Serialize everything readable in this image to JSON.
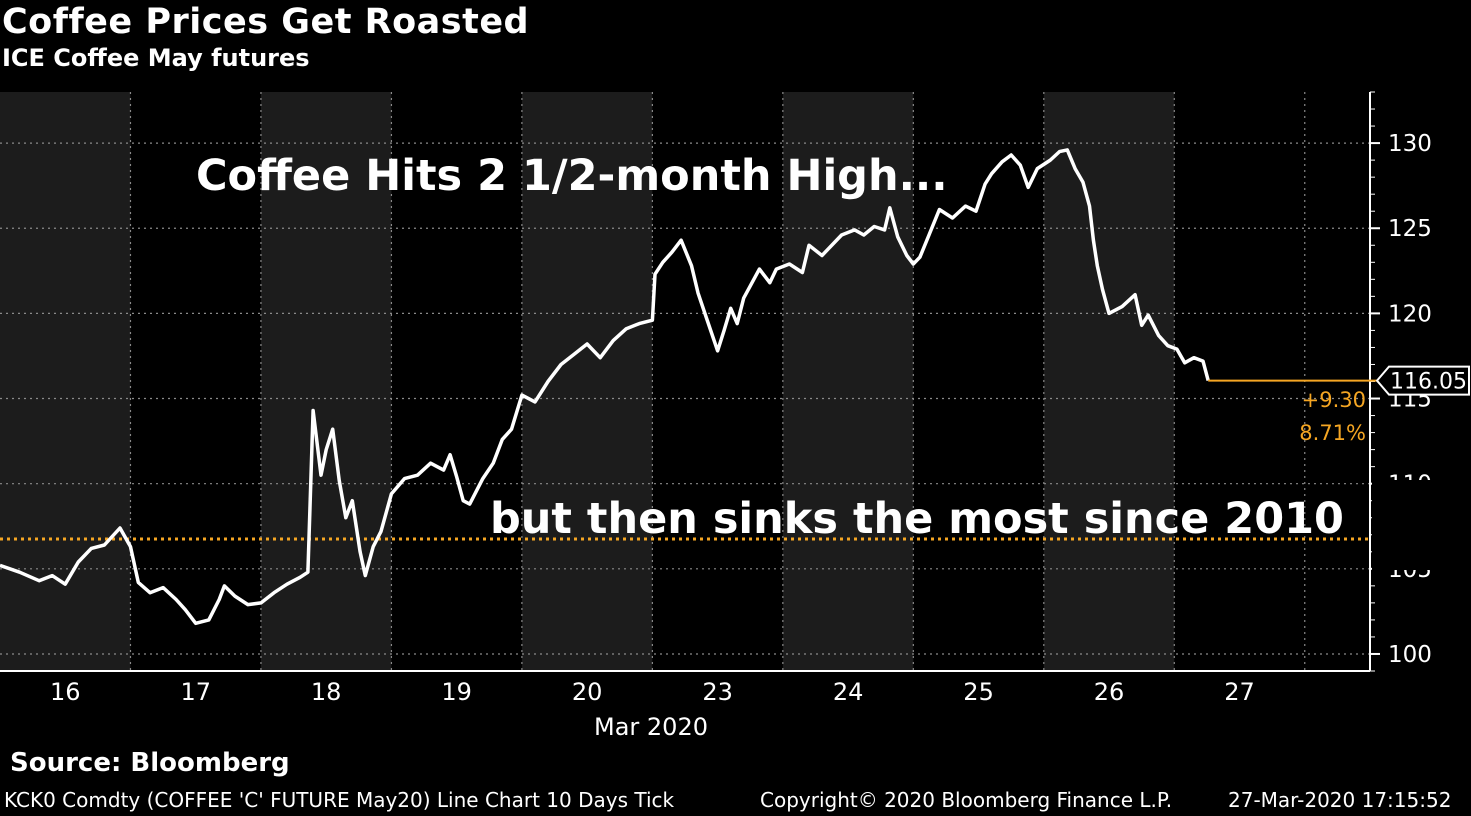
{
  "header": {
    "title": "Coffee Prices Get Roasted",
    "subtitle": "ICE Coffee May futures"
  },
  "footer": {
    "source": "Source: Bloomberg",
    "security": "KCK0 Comdty (COFFEE 'C' FUTURE May20) Line Chart 10 Days  Tick",
    "copyright": "Copyright© 2020 Bloomberg Finance L.P.",
    "timestamp": "27-Mar-2020 17:15:52"
  },
  "colors": {
    "background": "#000000",
    "shade": "#1c1c1c",
    "line": "#ffffff",
    "reference": "#f5a623",
    "grid": "#8a8a8a"
  },
  "chart_data": {
    "type": "line",
    "title": "Coffee Prices Get Roasted",
    "subtitle": "ICE Coffee May futures",
    "xlabel": "Mar 2020",
    "ylabel": "",
    "x_ticks": [
      "16",
      "17",
      "18",
      "19",
      "20",
      "23",
      "24",
      "25",
      "26",
      "27"
    ],
    "y_ticks": [
      100,
      105,
      110,
      115,
      120,
      125,
      130
    ],
    "ylim": [
      99,
      133
    ],
    "grid": true,
    "shaded_sessions": [
      "16",
      "18",
      "20",
      "24",
      "26"
    ],
    "annotations": [
      "Coffee Hits 2 1/2-month High...",
      "but then sinks the most since 2010"
    ],
    "last_price_label": "116.05",
    "change_labels": [
      "+9.30",
      "8.71%"
    ],
    "reference_line": 106.75,
    "series": [
      {
        "values": [
          [
            15.5,
            105.2
          ],
          [
            15.65,
            104.8
          ],
          [
            15.8,
            104.3
          ],
          [
            15.9,
            104.6
          ],
          [
            16.0,
            104.1
          ],
          [
            16.1,
            105.4
          ],
          [
            16.2,
            106.2
          ],
          [
            16.3,
            106.4
          ],
          [
            16.42,
            107.4
          ],
          [
            16.5,
            106.3
          ],
          [
            16.56,
            104.2
          ],
          [
            16.65,
            103.6
          ],
          [
            16.75,
            103.9
          ],
          [
            16.85,
            103.2
          ],
          [
            16.92,
            102.6
          ],
          [
            17.0,
            101.8
          ],
          [
            17.1,
            102.0
          ],
          [
            17.18,
            103.2
          ],
          [
            17.22,
            104.0
          ],
          [
            17.3,
            103.4
          ],
          [
            17.4,
            102.9
          ],
          [
            17.5,
            103.0
          ],
          [
            17.6,
            103.6
          ],
          [
            17.7,
            104.1
          ],
          [
            17.8,
            104.5
          ],
          [
            17.86,
            104.8
          ],
          [
            17.9,
            114.3
          ],
          [
            17.96,
            110.5
          ],
          [
            18.0,
            112.0
          ],
          [
            18.05,
            113.2
          ],
          [
            18.1,
            110.2
          ],
          [
            18.15,
            108.0
          ],
          [
            18.2,
            109.0
          ],
          [
            18.26,
            106.0
          ],
          [
            18.3,
            104.6
          ],
          [
            18.36,
            106.3
          ],
          [
            18.42,
            107.2
          ],
          [
            18.5,
            109.4
          ],
          [
            18.6,
            110.3
          ],
          [
            18.7,
            110.5
          ],
          [
            18.8,
            111.2
          ],
          [
            18.9,
            110.8
          ],
          [
            18.95,
            111.7
          ],
          [
            19.0,
            110.4
          ],
          [
            19.05,
            109.0
          ],
          [
            19.1,
            108.8
          ],
          [
            19.2,
            110.3
          ],
          [
            19.28,
            111.2
          ],
          [
            19.35,
            112.6
          ],
          [
            19.42,
            113.2
          ],
          [
            19.5,
            115.2
          ],
          [
            19.6,
            114.8
          ],
          [
            19.7,
            116.0
          ],
          [
            19.8,
            117.0
          ],
          [
            19.9,
            117.6
          ],
          [
            20.0,
            118.2
          ],
          [
            20.1,
            117.4
          ],
          [
            20.2,
            118.4
          ],
          [
            20.3,
            119.1
          ],
          [
            20.4,
            119.4
          ],
          [
            20.5,
            119.6
          ],
          [
            20.52,
            122.3
          ],
          [
            20.58,
            123.0
          ],
          [
            20.65,
            123.6
          ],
          [
            20.72,
            124.3
          ],
          [
            20.8,
            122.8
          ],
          [
            20.85,
            121.2
          ],
          [
            20.92,
            119.6
          ],
          [
            21.0,
            117.8
          ],
          [
            21.05,
            119.0
          ],
          [
            21.1,
            120.3
          ],
          [
            21.15,
            119.4
          ],
          [
            21.2,
            120.9
          ],
          [
            21.25,
            121.6
          ],
          [
            21.32,
            122.6
          ],
          [
            21.4,
            121.8
          ],
          [
            21.45,
            122.6
          ],
          [
            21.55,
            122.9
          ],
          [
            21.65,
            122.4
          ],
          [
            21.7,
            124.0
          ],
          [
            21.8,
            123.4
          ],
          [
            21.85,
            123.8
          ],
          [
            21.95,
            124.6
          ],
          [
            22.05,
            124.9
          ],
          [
            22.12,
            124.6
          ],
          [
            22.2,
            125.1
          ],
          [
            22.28,
            124.9
          ],
          [
            22.32,
            126.2
          ],
          [
            22.38,
            124.5
          ],
          [
            22.45,
            123.4
          ],
          [
            22.5,
            122.9
          ],
          [
            22.55,
            123.3
          ],
          [
            22.62,
            124.6
          ],
          [
            22.7,
            126.1
          ],
          [
            22.8,
            125.6
          ],
          [
            22.9,
            126.3
          ],
          [
            22.98,
            126.0
          ],
          [
            23.05,
            127.6
          ],
          [
            23.1,
            128.2
          ],
          [
            23.18,
            128.9
          ],
          [
            23.25,
            129.3
          ],
          [
            23.32,
            128.7
          ],
          [
            23.38,
            127.4
          ],
          [
            23.45,
            128.5
          ],
          [
            23.55,
            129.0
          ],
          [
            23.62,
            129.5
          ],
          [
            23.68,
            129.6
          ],
          [
            23.74,
            128.5
          ],
          [
            23.8,
            127.7
          ],
          [
            23.85,
            126.3
          ],
          [
            23.88,
            124.3
          ],
          [
            23.91,
            122.8
          ],
          [
            23.95,
            121.4
          ],
          [
            24.0,
            120.0
          ],
          [
            24.1,
            120.4
          ],
          [
            24.2,
            121.1
          ],
          [
            24.25,
            119.3
          ],
          [
            24.3,
            119.9
          ],
          [
            24.38,
            118.7
          ],
          [
            24.45,
            118.1
          ],
          [
            24.52,
            117.9
          ],
          [
            24.58,
            117.1
          ],
          [
            24.65,
            117.4
          ],
          [
            24.72,
            117.2
          ],
          [
            24.76,
            116.05
          ]
        ]
      }
    ]
  }
}
